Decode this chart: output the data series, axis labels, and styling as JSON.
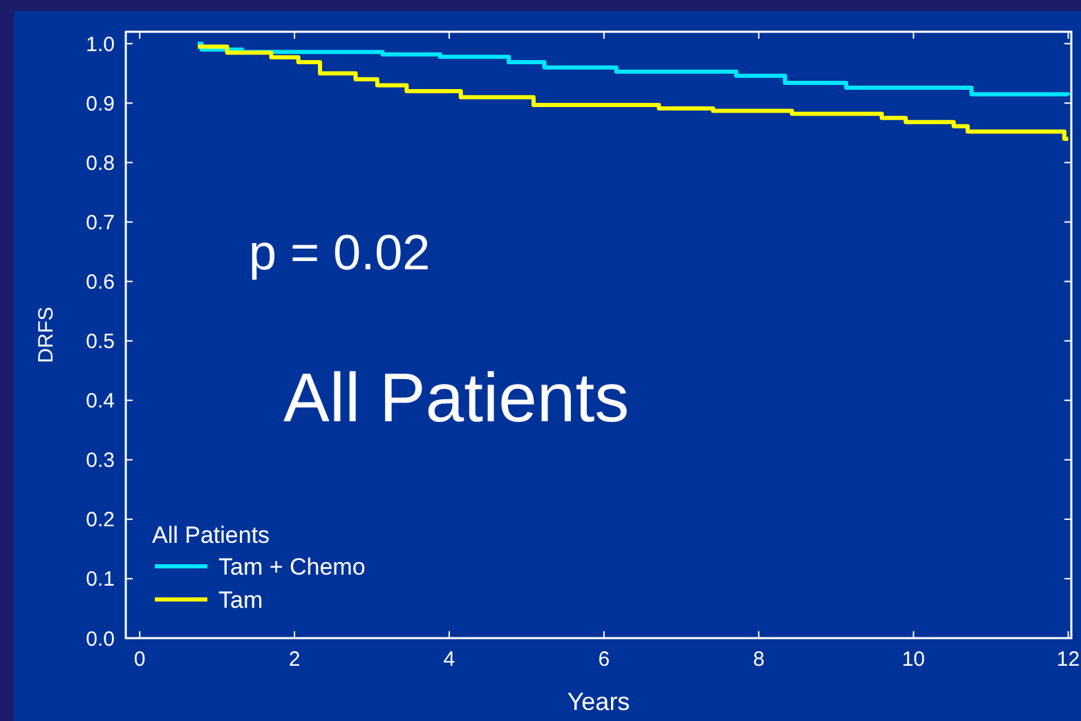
{
  "chart_data": {
    "type": "step",
    "xlabel": "Years",
    "ylabel": "DRFS",
    "legend_title": "All Patients",
    "legend": "bottom left",
    "grid": false,
    "xlim": [
      -0.18,
      12.04
    ],
    "xticks": [
      0,
      2,
      4,
      6,
      8,
      10,
      12
    ],
    "ylim": [
      0,
      1.02
    ],
    "yticks": [
      {
        "value": 0,
        "label": "0.0"
      },
      0.1,
      0.2,
      0.3,
      0.4,
      0.5,
      0.6,
      0.7,
      0.8,
      0.9,
      {
        "value": 1,
        "label": "1.0"
      }
    ],
    "annotations": [
      "p = 0.02",
      "All Patients"
    ],
    "series": [
      {
        "name": "Tam + Chemo",
        "color": "#00e5ff",
        "x": [
          0.75,
          0.8,
          1.32,
          3.14,
          3.88,
          4.77,
          5.23,
          6.16,
          7.71,
          8.34,
          9.13,
          10.75,
          12
        ],
        "values": [
          1.0,
          0.99,
          0.986,
          0.982,
          0.978,
          0.969,
          0.96,
          0.953,
          0.946,
          0.934,
          0.926,
          0.915,
          0.913
        ]
      },
      {
        "name": "Tam",
        "color": "#ffff00",
        "x": [
          0.75,
          1.13,
          1.7,
          2.05,
          2.33,
          2.79,
          3.07,
          3.45,
          4.15,
          5.09,
          6.71,
          7.41,
          8.43,
          9.59,
          9.9,
          10.52,
          10.7,
          11.95,
          12
        ],
        "values": [
          0.995,
          0.985,
          0.977,
          0.969,
          0.95,
          0.94,
          0.93,
          0.92,
          0.91,
          0.897,
          0.891,
          0.887,
          0.882,
          0.875,
          0.868,
          0.861,
          0.852,
          0.84,
          0.84
        ]
      }
    ]
  }
}
